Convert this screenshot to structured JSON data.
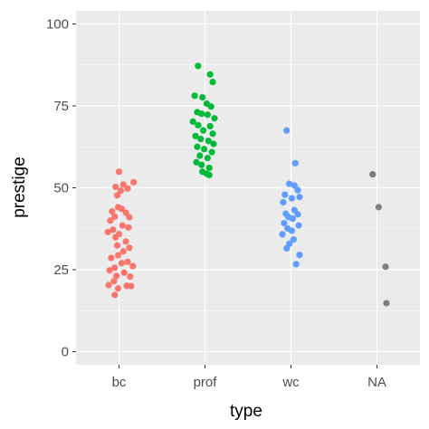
{
  "chart_data": {
    "type": "scatter",
    "xlabel": "type",
    "ylabel": "prestige",
    "categories": [
      "bc",
      "prof",
      "wc",
      "NA"
    ],
    "ylim": [
      -4,
      104
    ],
    "yticks": [
      0,
      25,
      50,
      75,
      100
    ],
    "grid": true,
    "legend": "none",
    "colors": {
      "panel": "#ebebeb",
      "grid_major": "#ffffff",
      "bc": "#f8766d",
      "prof": "#00ba38",
      "wc": "#619cff",
      "NA": "#7f7f7f"
    },
    "points": [
      {
        "category": "bc",
        "jitter": 0.0,
        "y": 54.9
      },
      {
        "category": "bc",
        "jitter": 0.17,
        "y": 51.7
      },
      {
        "category": "bc",
        "jitter": 0.05,
        "y": 51.0
      },
      {
        "category": "bc",
        "jitter": -0.04,
        "y": 50.3
      },
      {
        "category": "bc",
        "jitter": 0.1,
        "y": 49.8
      },
      {
        "category": "bc",
        "jitter": 0.02,
        "y": 49.1
      },
      {
        "category": "bc",
        "jitter": -0.02,
        "y": 47.7
      },
      {
        "category": "bc",
        "jitter": -0.01,
        "y": 44.1
      },
      {
        "category": "bc",
        "jitter": 0.03,
        "y": 43.6
      },
      {
        "category": "bc",
        "jitter": -0.08,
        "y": 42.8
      },
      {
        "category": "bc",
        "jitter": 0.08,
        "y": 42.4
      },
      {
        "category": "bc",
        "jitter": -0.05,
        "y": 41.2
      },
      {
        "category": "bc",
        "jitter": 0.12,
        "y": 41.0
      },
      {
        "category": "bc",
        "jitter": -0.1,
        "y": 40.0
      },
      {
        "category": "bc",
        "jitter": 0.04,
        "y": 38.5
      },
      {
        "category": "bc",
        "jitter": 0.11,
        "y": 37.9
      },
      {
        "category": "bc",
        "jitter": -0.07,
        "y": 37.2
      },
      {
        "category": "bc",
        "jitter": -0.13,
        "y": 36.5
      },
      {
        "category": "bc",
        "jitter": 0.0,
        "y": 35.9
      },
      {
        "category": "bc",
        "jitter": -0.04,
        "y": 34.9
      },
      {
        "category": "bc",
        "jitter": 0.08,
        "y": 33.6
      },
      {
        "category": "bc",
        "jitter": -0.02,
        "y": 32.4
      },
      {
        "category": "bc",
        "jitter": 0.12,
        "y": 31.7
      },
      {
        "category": "bc",
        "jitter": 0.05,
        "y": 30.6
      },
      {
        "category": "bc",
        "jitter": -0.01,
        "y": 29.4
      },
      {
        "category": "bc",
        "jitter": -0.09,
        "y": 28.6
      },
      {
        "category": "bc",
        "jitter": 0.1,
        "y": 27.4
      },
      {
        "category": "bc",
        "jitter": 0.03,
        "y": 27.0
      },
      {
        "category": "bc",
        "jitter": 0.16,
        "y": 26.1
      },
      {
        "category": "bc",
        "jitter": -0.05,
        "y": 25.6
      },
      {
        "category": "bc",
        "jitter": -0.11,
        "y": 24.8
      },
      {
        "category": "bc",
        "jitter": 0.06,
        "y": 24.1
      },
      {
        "category": "bc",
        "jitter": -0.03,
        "y": 23.1
      },
      {
        "category": "bc",
        "jitter": 0.13,
        "y": 22.9
      },
      {
        "category": "bc",
        "jitter": -0.06,
        "y": 21.5
      },
      {
        "category": "bc",
        "jitter": -0.12,
        "y": 20.3
      },
      {
        "category": "bc",
        "jitter": 0.09,
        "y": 20.1
      },
      {
        "category": "bc",
        "jitter": 0.14,
        "y": 20.0
      },
      {
        "category": "bc",
        "jitter": -0.01,
        "y": 19.3
      },
      {
        "category": "bc",
        "jitter": -0.05,
        "y": 17.3
      },
      {
        "category": "prof",
        "jitter": -0.08,
        "y": 87.2
      },
      {
        "category": "prof",
        "jitter": 0.06,
        "y": 84.6
      },
      {
        "category": "prof",
        "jitter": 0.09,
        "y": 82.3
      },
      {
        "category": "prof",
        "jitter": -0.12,
        "y": 78.1
      },
      {
        "category": "prof",
        "jitter": -0.03,
        "y": 77.6
      },
      {
        "category": "prof",
        "jitter": 0.02,
        "y": 75.7
      },
      {
        "category": "prof",
        "jitter": 0.07,
        "y": 74.8
      },
      {
        "category": "prof",
        "jitter": -0.09,
        "y": 73.1
      },
      {
        "category": "prof",
        "jitter": -0.04,
        "y": 72.6
      },
      {
        "category": "prof",
        "jitter": 0.03,
        "y": 72.3
      },
      {
        "category": "prof",
        "jitter": 0.11,
        "y": 71.2
      },
      {
        "category": "prof",
        "jitter": -0.14,
        "y": 70.2
      },
      {
        "category": "prof",
        "jitter": -0.08,
        "y": 69.1
      },
      {
        "category": "prof",
        "jitter": 0.06,
        "y": 68.8
      },
      {
        "category": "prof",
        "jitter": -0.02,
        "y": 67.5
      },
      {
        "category": "prof",
        "jitter": 0.09,
        "y": 66.5
      },
      {
        "category": "prof",
        "jitter": -0.11,
        "y": 65.8
      },
      {
        "category": "prof",
        "jitter": -0.05,
        "y": 64.9
      },
      {
        "category": "prof",
        "jitter": 0.04,
        "y": 64.3
      },
      {
        "category": "prof",
        "jitter": 0.1,
        "y": 63.4
      },
      {
        "category": "prof",
        "jitter": -0.09,
        "y": 62.5
      },
      {
        "category": "prof",
        "jitter": -0.01,
        "y": 61.8
      },
      {
        "category": "prof",
        "jitter": 0.08,
        "y": 60.9
      },
      {
        "category": "prof",
        "jitter": -0.06,
        "y": 59.8
      },
      {
        "category": "prof",
        "jitter": 0.03,
        "y": 59.1
      },
      {
        "category": "prof",
        "jitter": -0.1,
        "y": 57.8
      },
      {
        "category": "prof",
        "jitter": -0.04,
        "y": 57.0
      },
      {
        "category": "prof",
        "jitter": 0.05,
        "y": 56.1
      },
      {
        "category": "prof",
        "jitter": -0.03,
        "y": 54.9
      },
      {
        "category": "prof",
        "jitter": 0.02,
        "y": 54.3
      },
      {
        "category": "prof",
        "jitter": 0.05,
        "y": 53.9
      },
      {
        "category": "wc",
        "jitter": -0.05,
        "y": 67.5
      },
      {
        "category": "wc",
        "jitter": 0.05,
        "y": 57.5
      },
      {
        "category": "wc",
        "jitter": -0.02,
        "y": 51.2
      },
      {
        "category": "wc",
        "jitter": 0.04,
        "y": 50.7
      },
      {
        "category": "wc",
        "jitter": 0.08,
        "y": 49.3
      },
      {
        "category": "wc",
        "jitter": -0.07,
        "y": 47.9
      },
      {
        "category": "wc",
        "jitter": 0.1,
        "y": 47.2
      },
      {
        "category": "wc",
        "jitter": 0.01,
        "y": 46.8
      },
      {
        "category": "wc",
        "jitter": -0.09,
        "y": 45.6
      },
      {
        "category": "wc",
        "jitter": 0.04,
        "y": 43.2
      },
      {
        "category": "wc",
        "jitter": -0.06,
        "y": 42.1
      },
      {
        "category": "wc",
        "jitter": 0.08,
        "y": 41.9
      },
      {
        "category": "wc",
        "jitter": -0.03,
        "y": 41.1
      },
      {
        "category": "wc",
        "jitter": 0.02,
        "y": 40.6
      },
      {
        "category": "wc",
        "jitter": -0.08,
        "y": 39.2
      },
      {
        "category": "wc",
        "jitter": 0.09,
        "y": 38.5
      },
      {
        "category": "wc",
        "jitter": -0.04,
        "y": 37.6
      },
      {
        "category": "wc",
        "jitter": 0.01,
        "y": 36.9
      },
      {
        "category": "wc",
        "jitter": -0.1,
        "y": 35.8
      },
      {
        "category": "wc",
        "jitter": 0.03,
        "y": 34.2
      },
      {
        "category": "wc",
        "jitter": -0.02,
        "y": 32.9
      },
      {
        "category": "wc",
        "jitter": -0.05,
        "y": 31.5
      },
      {
        "category": "wc",
        "jitter": 0.1,
        "y": 29.5
      },
      {
        "category": "wc",
        "jitter": 0.06,
        "y": 26.7
      },
      {
        "category": "NA",
        "jitter": -0.05,
        "y": 54.1
      },
      {
        "category": "NA",
        "jitter": 0.02,
        "y": 44.1
      },
      {
        "category": "NA",
        "jitter": 0.1,
        "y": 25.9
      },
      {
        "category": "NA",
        "jitter": 0.11,
        "y": 14.8
      }
    ]
  }
}
